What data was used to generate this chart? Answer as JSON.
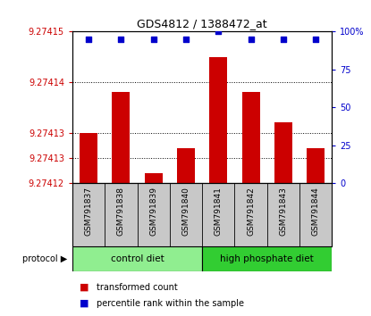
{
  "title": "GDS4812 / 1388472_at",
  "samples": [
    "GSM791837",
    "GSM791838",
    "GSM791839",
    "GSM791840",
    "GSM791841",
    "GSM791842",
    "GSM791843",
    "GSM791844"
  ],
  "transformed_counts": [
    9.27413,
    9.274138,
    9.274122,
    9.274127,
    9.274145,
    9.274138,
    9.274132,
    9.274127
  ],
  "percentile_ranks": [
    95,
    95,
    95,
    95,
    100,
    95,
    95,
    95
  ],
  "ylim_left": [
    9.27412,
    9.27415
  ],
  "ylim_right": [
    0,
    100
  ],
  "left_ticks": [
    9.27412,
    9.274125,
    9.27413,
    9.27414,
    9.27415
  ],
  "left_tick_labels": [
    "9.27412",
    "9.27413",
    "9.27413",
    "9.27414",
    "9.27415"
  ],
  "right_ticks": [
    0,
    25,
    50,
    75,
    100
  ],
  "right_tick_labels": [
    "0",
    "25",
    "50",
    "75",
    "100%"
  ],
  "group_control_color": "#90EE90",
  "group_high_color": "#32CD32",
  "group_control_label": "control diet",
  "group_high_label": "high phosphate diet",
  "bar_color": "#CC0000",
  "dot_color": "#0000CC",
  "bar_width": 0.55,
  "grid_color": "#000000",
  "left_axis_color": "#CC0000",
  "right_axis_color": "#0000CC",
  "xlabel_area_color": "#C8C8C8",
  "legend_bar_label": "transformed count",
  "legend_dot_label": "percentile rank within the sample",
  "protocol_label": "protocol"
}
